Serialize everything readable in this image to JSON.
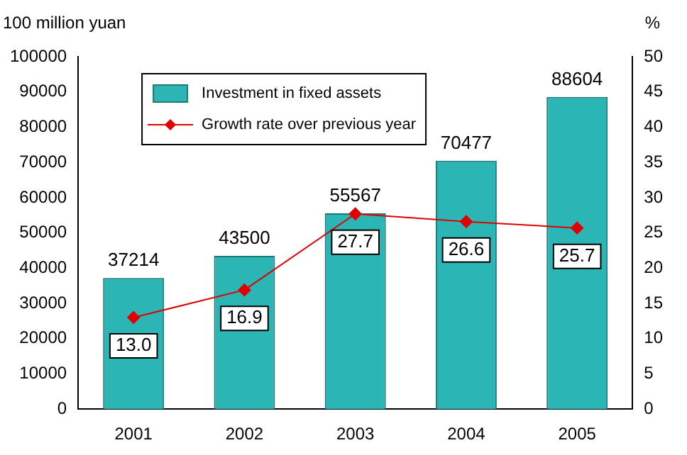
{
  "chart_data": {
    "type": "bar",
    "ylabel": "100 million yuan",
    "y2label": "%",
    "categories": [
      "2001",
      "2002",
      "2003",
      "2004",
      "2005"
    ],
    "series": [
      {
        "name": "Investment in fixed assets",
        "color": "#2cb5b5",
        "values": [
          37214,
          43500,
          55567,
          70477,
          88604
        ]
      },
      {
        "name": "Growth rate over previous year",
        "type": "line",
        "axis": "y2",
        "color": "#e00000",
        "marker": "diamond",
        "values": [
          13.0,
          16.9,
          27.7,
          26.6,
          25.7
        ],
        "value_labels": [
          "13.0",
          "16.9",
          "27.7",
          "26.6",
          "25.7"
        ]
      }
    ],
    "ylim": [
      0,
      100000
    ],
    "yticks": [
      0,
      10000,
      20000,
      30000,
      40000,
      50000,
      60000,
      70000,
      80000,
      90000,
      100000
    ],
    "y2lim": [
      0,
      50
    ],
    "y2ticks": [
      0,
      5,
      10,
      15,
      20,
      25,
      30,
      35,
      40,
      45,
      50
    ],
    "data_labels": true,
    "legend": "top left",
    "grid": false
  }
}
